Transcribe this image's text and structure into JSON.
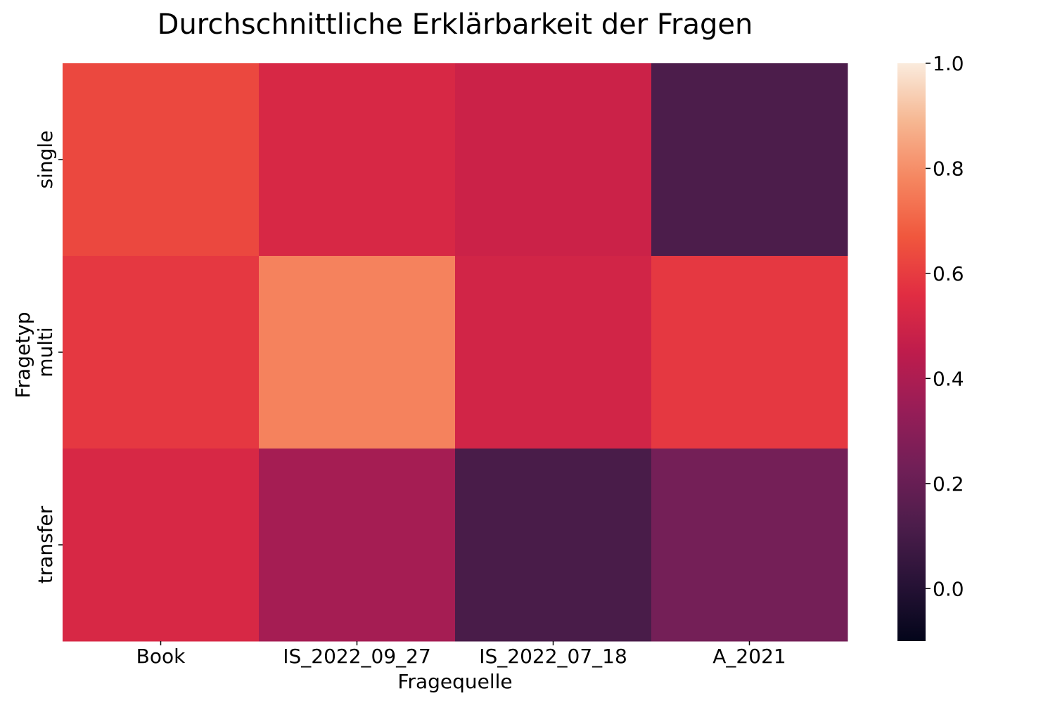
{
  "chart_data": {
    "type": "heatmap",
    "title": "Durchschnittliche Erklärbarkeit der Fragen",
    "xlabel": "Fragequelle",
    "ylabel": "Fragetyp",
    "x_categories": [
      "Book",
      "IS_2022_09_27",
      "IS_2022_07_18",
      "A_2021"
    ],
    "y_categories": [
      "single",
      "multi",
      "transfer"
    ],
    "values": [
      [
        0.63,
        0.53,
        0.49,
        0.12
      ],
      [
        0.59,
        0.77,
        0.51,
        0.59
      ],
      [
        0.53,
        0.38,
        0.11,
        0.24
      ]
    ],
    "colorbar": {
      "range": [
        -0.1,
        1.0
      ],
      "ticks": [
        "1.0",
        "0.8",
        "0.6",
        "0.4",
        "0.2",
        "0.0"
      ],
      "tick_values": [
        1.0,
        0.8,
        0.6,
        0.4,
        0.2,
        0.0
      ],
      "colormap": "rocket"
    },
    "grid": false
  }
}
